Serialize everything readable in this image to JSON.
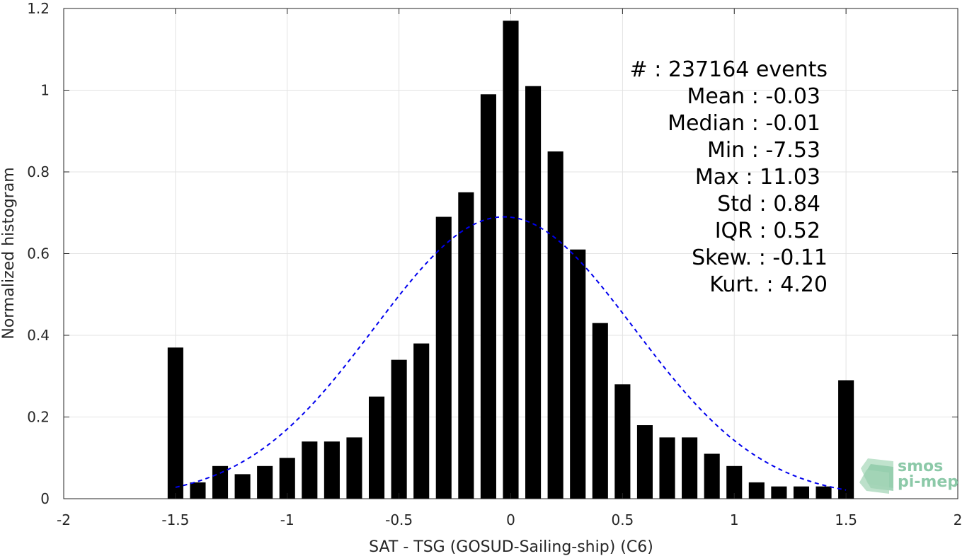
{
  "chart_data": {
    "type": "bar",
    "xlabel": "SAT - TSG (GOSUD-Sailing-ship) (C6)",
    "ylabel": "Normalized histogram",
    "xlim": [
      -2,
      2
    ],
    "ylim": [
      0,
      1.2
    ],
    "xticks": [
      -2,
      -1.5,
      -1,
      -0.5,
      0,
      0.5,
      1,
      1.5,
      2
    ],
    "xtick_labels": [
      "-2",
      "-1.5",
      "-1",
      "-0.5",
      "0",
      "0.5",
      "1",
      "1.5",
      "2"
    ],
    "yticks": [
      0,
      0.2,
      0.4,
      0.6,
      0.8,
      1,
      1.2
    ],
    "ytick_labels": [
      "0",
      "0.2",
      "0.4",
      "0.6",
      "0.8",
      "1",
      "1.2"
    ],
    "grid": true,
    "bar_color": "#000000",
    "bins": [
      -1.5,
      -1.4,
      -1.3,
      -1.2,
      -1.1,
      -1.0,
      -0.9,
      -0.8,
      -0.7,
      -0.6,
      -0.5,
      -0.4,
      -0.3,
      -0.2,
      -0.1,
      0.0,
      0.1,
      0.2,
      0.3,
      0.4,
      0.5,
      0.6,
      0.7,
      0.8,
      0.9,
      1.0,
      1.1,
      1.2,
      1.3,
      1.4,
      1.5
    ],
    "values": [
      0.37,
      0.04,
      0.08,
      0.06,
      0.08,
      0.1,
      0.14,
      0.14,
      0.15,
      0.25,
      0.34,
      0.38,
      0.69,
      0.75,
      0.99,
      1.17,
      1.01,
      0.85,
      0.61,
      0.43,
      0.28,
      0.18,
      0.15,
      0.15,
      0.11,
      0.08,
      0.04,
      0.03,
      0.03,
      0.03,
      0.29
    ],
    "fit_curve": {
      "style": "dashed",
      "color": "#0000ee",
      "mean": -0.03,
      "std": 0.58,
      "peak": 0.69,
      "x_range": [
        -1.5,
        1.5
      ]
    },
    "annotations": [
      "#  : 237164 events",
      "Mean : -0.03",
      "Median : -0.01",
      "Min : -7.53",
      "Max : 11.03",
      "Std : 0.84",
      "IQR : 0.52",
      "Skew. : -0.11",
      "Kurt. : 4.20"
    ]
  },
  "logo": {
    "line1": "smos",
    "line2": "pi-mep",
    "color": "#8cc9a8"
  }
}
